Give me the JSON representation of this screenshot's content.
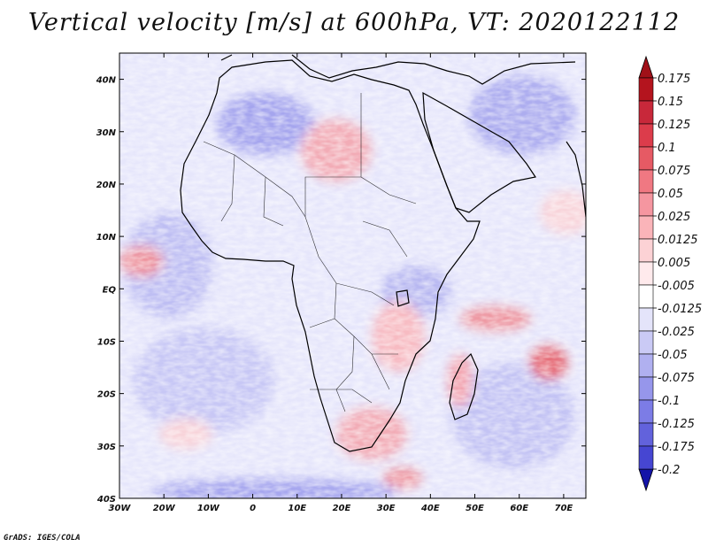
{
  "title": "Vertical velocity [m/s] at 600hPa, VT: 2020122112",
  "credit": "GrADS: IGES/COLA",
  "map": {
    "lon_range": [
      -30,
      75
    ],
    "lat_range": [
      -40,
      45
    ],
    "lat_ticks": [
      {
        "value": 40,
        "label": "40N"
      },
      {
        "value": 30,
        "label": "30N"
      },
      {
        "value": 20,
        "label": "20N"
      },
      {
        "value": 10,
        "label": "10N"
      },
      {
        "value": 0,
        "label": "EQ"
      },
      {
        "value": -10,
        "label": "10S"
      },
      {
        "value": -20,
        "label": "20S"
      },
      {
        "value": -30,
        "label": "30S"
      },
      {
        "value": -40,
        "label": "40S"
      }
    ],
    "lon_ticks": [
      {
        "value": -30,
        "label": "30W"
      },
      {
        "value": -20,
        "label": "20W"
      },
      {
        "value": -10,
        "label": "10W"
      },
      {
        "value": 0,
        "label": "0"
      },
      {
        "value": 10,
        "label": "10E"
      },
      {
        "value": 20,
        "label": "20E"
      },
      {
        "value": 30,
        "label": "30E"
      },
      {
        "value": 40,
        "label": "40E"
      },
      {
        "value": 50,
        "label": "50E"
      },
      {
        "value": 60,
        "label": "60E"
      },
      {
        "value": 70,
        "label": "70E"
      }
    ]
  },
  "colorbar": {
    "levels": [
      {
        "label": "0.175",
        "color": "#b4141e"
      },
      {
        "label": "0.15",
        "color": "#c8283a"
      },
      {
        "label": "0.125",
        "color": "#dc3c4b"
      },
      {
        "label": "0.1",
        "color": "#e65a64"
      },
      {
        "label": "0.075",
        "color": "#f07882"
      },
      {
        "label": "0.05",
        "color": "#f596a0"
      },
      {
        "label": "0.025",
        "color": "#fab4b9"
      },
      {
        "label": "0.0125",
        "color": "#fcd2d5"
      },
      {
        "label": "0.005",
        "color": "#ffeaec"
      },
      {
        "label": "-0.005",
        "color": "#ffffff"
      },
      {
        "label": "-0.0125",
        "color": "#e4e4fa"
      },
      {
        "label": "-0.025",
        "color": "#cacaf5"
      },
      {
        "label": "-0.05",
        "color": "#b0b0f0"
      },
      {
        "label": "-0.075",
        "color": "#9696eb"
      },
      {
        "label": "-0.1",
        "color": "#7c7ce6"
      },
      {
        "label": "-0.125",
        "color": "#6262dc"
      },
      {
        "label": "-0.175",
        "color": "#4646d2"
      },
      {
        "label": "-0.2",
        "color": "#2a2ac3"
      }
    ],
    "top_color": "#a01018",
    "bottom_color": "#1414a8"
  },
  "colors": {
    "field_base": "#e6e6fb",
    "strong_up": "#c8283a",
    "strong_down": "#4646d2",
    "coast": "#000000"
  }
}
